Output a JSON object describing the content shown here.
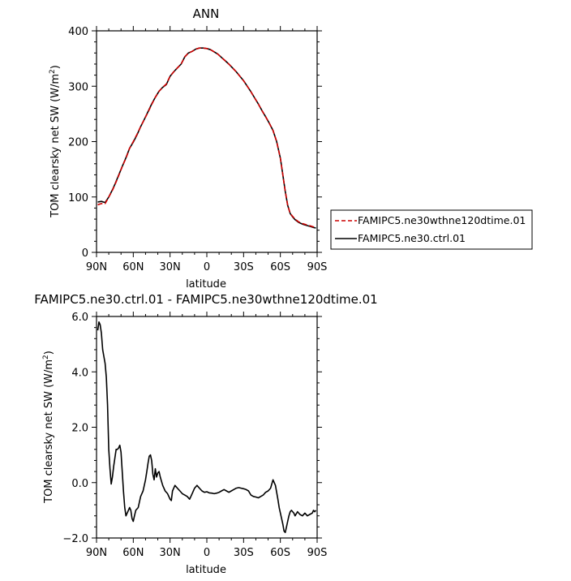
{
  "chart_data": [
    {
      "type": "line",
      "title": "ANN",
      "xlabel": "latitude",
      "ylabel": "TOM clearsky net SW (W/m",
      "ylabel_sup": "2",
      "ylabel_end": ")",
      "xlim": [
        90,
        -90
      ],
      "ylim": [
        0,
        400
      ],
      "x_ticks": [
        90,
        60,
        30,
        0,
        -30,
        -60,
        -90
      ],
      "x_tick_labels": [
        "90N",
        "60N",
        "30N",
        "0",
        "30S",
        "60S",
        "90S"
      ],
      "y_ticks": [
        0,
        100,
        200,
        300,
        400
      ],
      "y_tick_labels": [
        "0",
        "100",
        "200",
        "300",
        "400"
      ],
      "grid": false,
      "legend_position": "right",
      "series": [
        {
          "name": "FAMIPC5.ne30wthne120dtime.01",
          "color": "#cc0000",
          "dash": "dashed",
          "x": [
            89,
            86,
            83,
            80,
            77,
            75,
            72,
            69,
            66,
            63,
            60,
            57,
            54,
            51,
            48,
            45,
            42,
            39,
            36,
            33,
            30,
            27,
            24,
            21,
            18,
            15,
            12,
            9,
            6,
            3,
            0,
            -3,
            -6,
            -9,
            -12,
            -15,
            -18,
            -21,
            -24,
            -27,
            -30,
            -33,
            -36,
            -39,
            -42,
            -45,
            -48,
            -51,
            -54,
            -57,
            -60,
            -62,
            -64,
            -66,
            -68,
            -70,
            -72,
            -75,
            -78,
            -81,
            -84,
            -87,
            -89
          ],
          "y": [
            86,
            88,
            88,
            100,
            112,
            122,
            138,
            155,
            170,
            188,
            200,
            213,
            227,
            240,
            253,
            267,
            280,
            291,
            298,
            304,
            318,
            326,
            333,
            340,
            353,
            360,
            363,
            367,
            369,
            369,
            368,
            366,
            362,
            358,
            352,
            346,
            340,
            333,
            326,
            318,
            310,
            300,
            290,
            279,
            268,
            256,
            245,
            233,
            220,
            200,
            170,
            140,
            110,
            85,
            70,
            65,
            60,
            55,
            52,
            50,
            48,
            46,
            45
          ]
        },
        {
          "name": "FAMIPC5.ne30.ctrl.01",
          "color": "#000000",
          "dash": "solid",
          "x": [
            89,
            86,
            83,
            80,
            77,
            75,
            72,
            69,
            66,
            63,
            60,
            57,
            54,
            51,
            48,
            45,
            42,
            39,
            36,
            33,
            30,
            27,
            24,
            21,
            18,
            15,
            12,
            9,
            6,
            3,
            0,
            -3,
            -6,
            -9,
            -12,
            -15,
            -18,
            -21,
            -24,
            -27,
            -30,
            -33,
            -36,
            -39,
            -42,
            -45,
            -48,
            -51,
            -54,
            -57,
            -60,
            -62,
            -64,
            -66,
            -68,
            -70,
            -72,
            -75,
            -78,
            -81,
            -84,
            -87,
            -89
          ],
          "y": [
            91,
            92,
            90,
            100,
            113,
            123,
            139,
            155,
            171,
            188,
            199,
            212,
            227,
            240,
            254,
            268,
            280,
            291,
            298,
            303,
            318,
            326,
            333,
            340,
            353,
            360,
            363,
            367,
            369,
            369,
            368,
            366,
            362,
            358,
            352,
            346,
            340,
            333,
            326,
            318,
            310,
            300,
            290,
            279,
            268,
            256,
            245,
            233,
            220,
            200,
            170,
            140,
            110,
            85,
            70,
            64,
            59,
            54,
            51,
            49,
            47,
            45,
            44
          ]
        }
      ]
    },
    {
      "type": "line",
      "title": "FAMIPC5.ne30.ctrl.01 - FAMIPC5.ne30wthne120dtime.01",
      "xlabel": "latitude",
      "ylabel": "TOM clearsky net SW (W/m",
      "ylabel_sup": "2",
      "ylabel_end": ")",
      "xlim": [
        90,
        -90
      ],
      "ylim": [
        -2,
        6
      ],
      "x_ticks": [
        90,
        60,
        30,
        0,
        -30,
        -60,
        -90
      ],
      "x_tick_labels": [
        "90N",
        "60N",
        "30N",
        "0",
        "30S",
        "60S",
        "90S"
      ],
      "y_ticks": [
        -2,
        0,
        2,
        4,
        6
      ],
      "y_tick_labels": [
        "−2.0",
        "0.0",
        "2.0",
        "4.0",
        "6.0"
      ],
      "grid": false,
      "series": [
        {
          "color": "#000000",
          "x": [
            89,
            88,
            87,
            86,
            85,
            83,
            82,
            81,
            80,
            79,
            78,
            77,
            76,
            75,
            74,
            73,
            72,
            71,
            70,
            69,
            68,
            67,
            66,
            65,
            64,
            63,
            62,
            61,
            60,
            59,
            58,
            56,
            54,
            52,
            50,
            49,
            48,
            47,
            46,
            45,
            44,
            43,
            42,
            41,
            40,
            39,
            38,
            36,
            34,
            32,
            30,
            29,
            28,
            26,
            24,
            22,
            20,
            18,
            16,
            14,
            12,
            10,
            8,
            6,
            4,
            2,
            0,
            -2,
            -4,
            -6,
            -8,
            -10,
            -12,
            -14,
            -16,
            -18,
            -20,
            -22,
            -24,
            -26,
            -28,
            -30,
            -32,
            -34,
            -36,
            -38,
            -40,
            -42,
            -44,
            -46,
            -48,
            -50,
            -52,
            -54,
            -56,
            -58,
            -59,
            -60,
            -61,
            -62,
            -63,
            -64,
            -65,
            -66,
            -67,
            -68,
            -69,
            -70,
            -71,
            -72,
            -74,
            -76,
            -78,
            -80,
            -82,
            -84,
            -86,
            -87,
            -88,
            -89
          ],
          "y": [
            5.5,
            5.8,
            5.7,
            5.4,
            4.8,
            4.3,
            3.8,
            2.8,
            1.2,
            0.5,
            -0.05,
            0.2,
            0.6,
            0.9,
            1.2,
            1.2,
            1.25,
            1.35,
            1.1,
            0.4,
            -0.3,
            -0.9,
            -1.2,
            -1.1,
            -1.0,
            -0.9,
            -1.0,
            -1.3,
            -1.4,
            -1.2,
            -1.0,
            -0.9,
            -0.5,
            -0.3,
            0.1,
            0.4,
            0.7,
            0.95,
            1.0,
            0.8,
            0.3,
            0.1,
            0.5,
            0.2,
            0.35,
            0.4,
            0.2,
            -0.1,
            -0.3,
            -0.4,
            -0.6,
            -0.65,
            -0.3,
            -0.1,
            -0.2,
            -0.3,
            -0.4,
            -0.45,
            -0.5,
            -0.6,
            -0.4,
            -0.2,
            -0.1,
            -0.2,
            -0.3,
            -0.35,
            -0.33,
            -0.37,
            -0.38,
            -0.4,
            -0.38,
            -0.35,
            -0.3,
            -0.25,
            -0.3,
            -0.35,
            -0.3,
            -0.25,
            -0.2,
            -0.18,
            -0.2,
            -0.22,
            -0.25,
            -0.3,
            -0.45,
            -0.5,
            -0.52,
            -0.55,
            -0.5,
            -0.45,
            -0.35,
            -0.3,
            -0.2,
            0.1,
            -0.1,
            -0.6,
            -0.9,
            -1.1,
            -1.3,
            -1.5,
            -1.75,
            -1.8,
            -1.6,
            -1.4,
            -1.2,
            -1.05,
            -1.0,
            -1.05,
            -1.1,
            -1.2,
            -1.05,
            -1.15,
            -1.2,
            -1.1,
            -1.2,
            -1.15,
            -1.1,
            -1.0,
            -1.05,
            -1.0
          ]
        }
      ]
    }
  ]
}
